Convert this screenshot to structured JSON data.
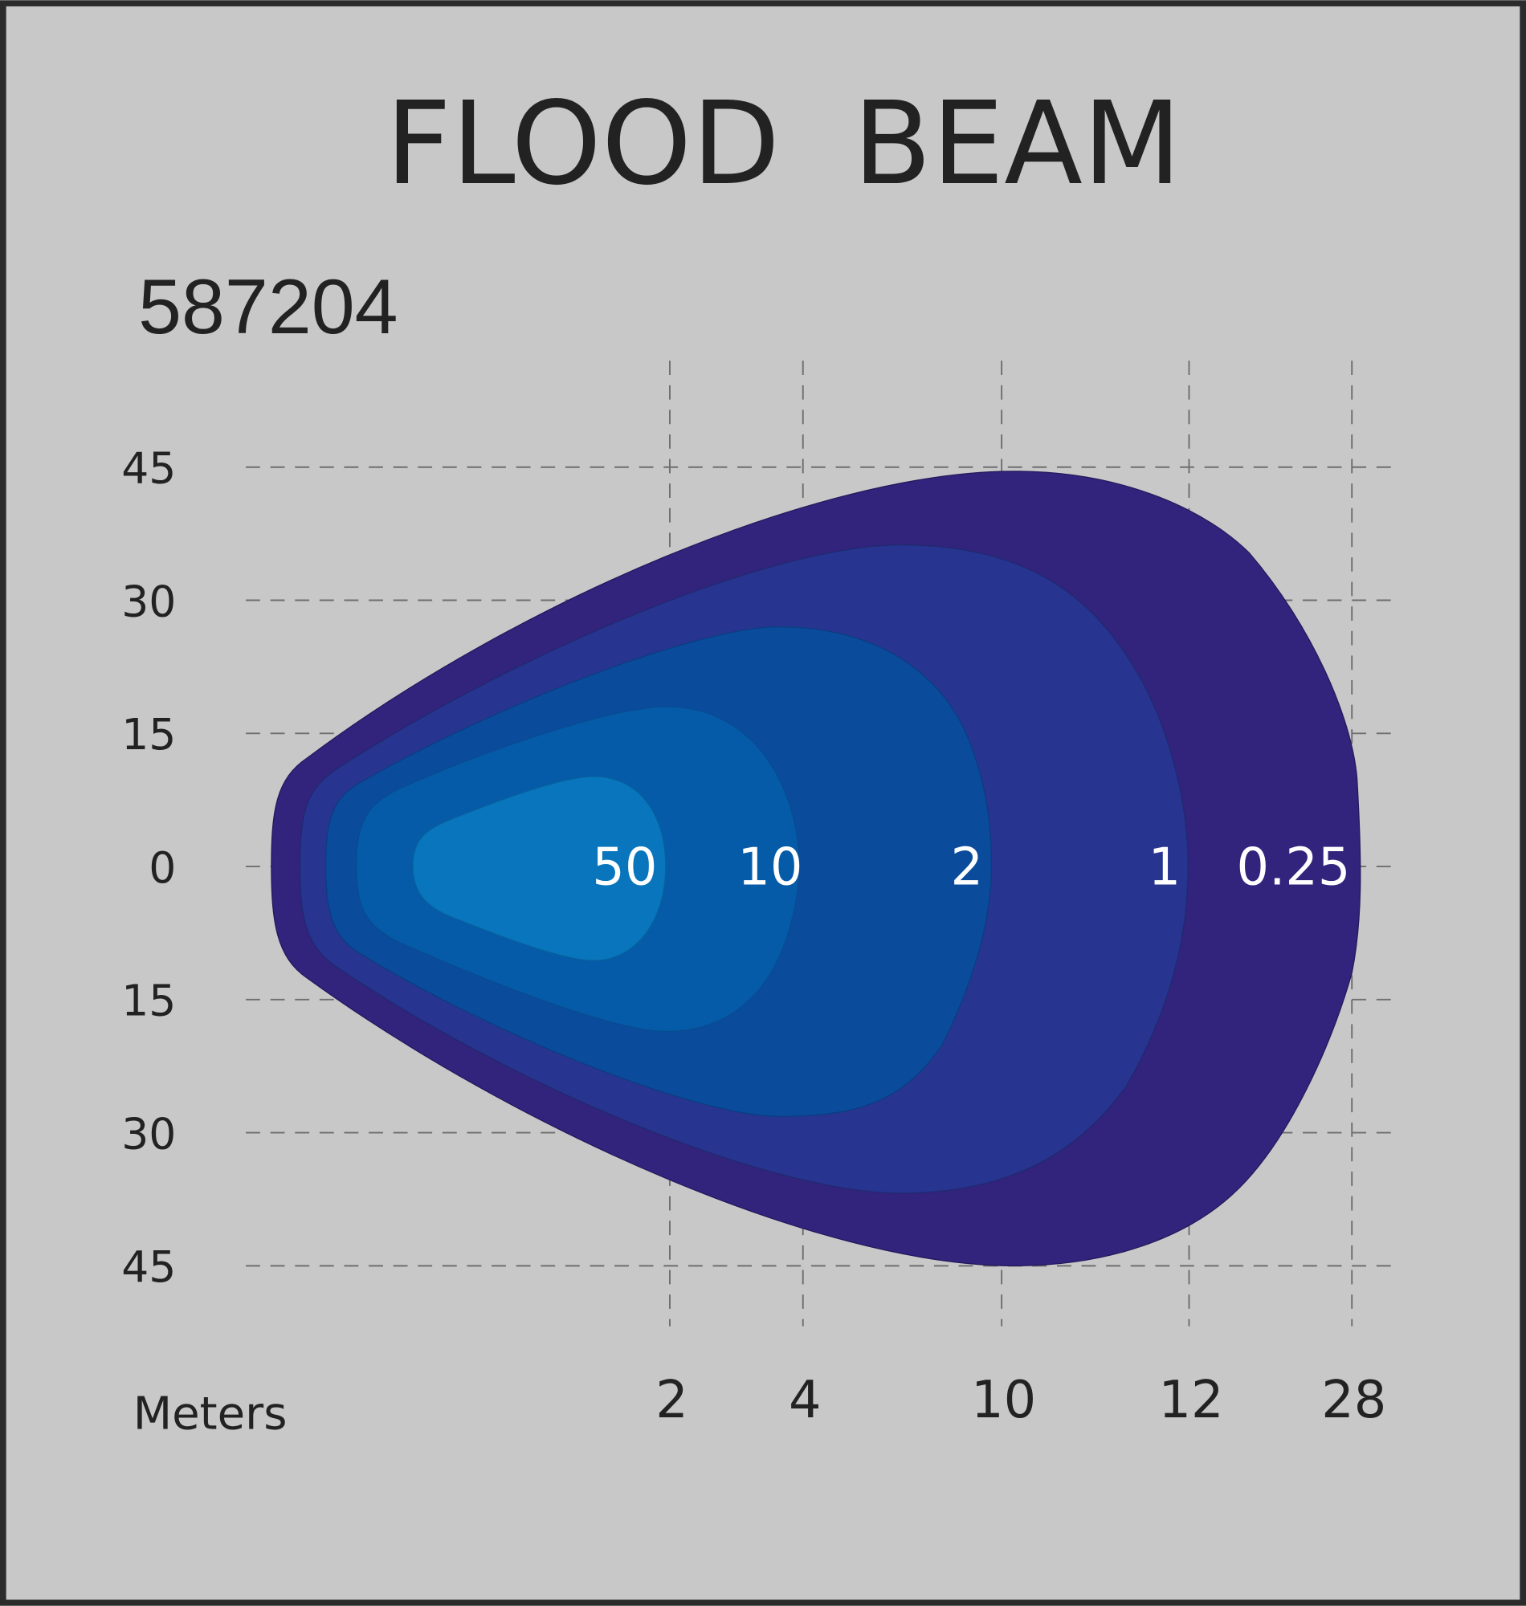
{
  "header": {
    "title": "FLOOD  BEAM",
    "code": "587204"
  },
  "y_axis": {
    "labels": [
      "45",
      "30",
      "15",
      "0",
      "15",
      "30",
      "45"
    ]
  },
  "x_axis": {
    "unit": "Meters",
    "labels": [
      "2",
      "4",
      "10",
      "12",
      "28"
    ]
  },
  "contours": {
    "labels": [
      "50",
      "10",
      "2",
      "1",
      "0.25"
    ]
  }
}
